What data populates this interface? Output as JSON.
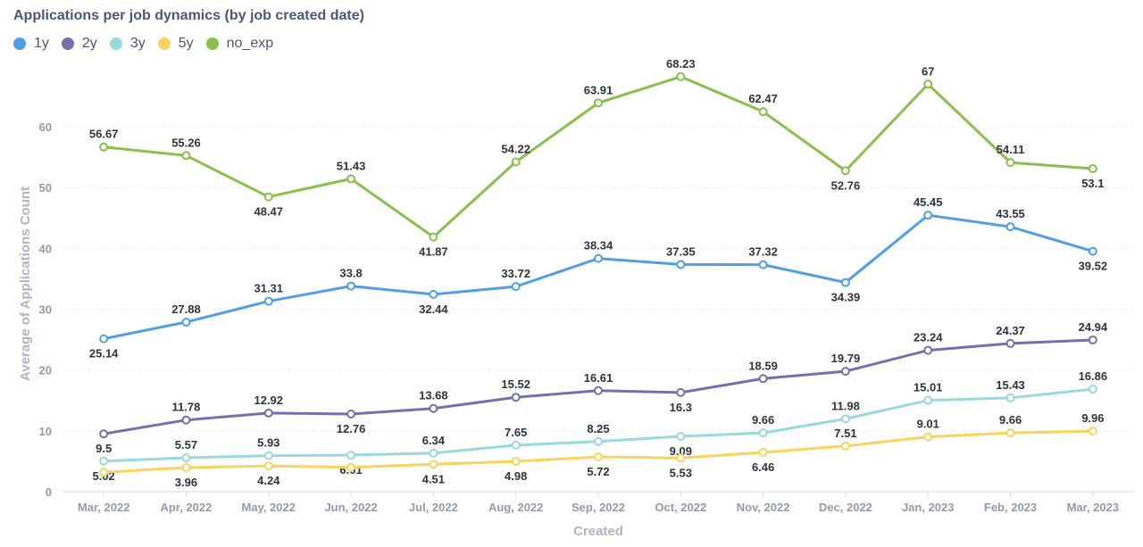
{
  "chart_data": {
    "type": "line",
    "title": "Applications per job dynamics (by job created date)",
    "xlabel": "Created",
    "ylabel": "Average of Applications Count",
    "ylim": [
      0,
      70
    ],
    "yticks": [
      0,
      10,
      20,
      30,
      40,
      50,
      60
    ],
    "grid": true,
    "legend_position": "top-left",
    "categories": [
      "Mar, 2022",
      "Apr, 2022",
      "May, 2022",
      "Jun, 2022",
      "Jul, 2022",
      "Aug, 2022",
      "Sep, 2022",
      "Oct, 2022",
      "Nov, 2022",
      "Dec, 2022",
      "Jan, 2023",
      "Feb, 2023",
      "Mar, 2023"
    ],
    "series": [
      {
        "name": "1y",
        "color": "#509ee3",
        "values": [
          25.14,
          27.88,
          31.31,
          33.8,
          32.44,
          33.72,
          38.34,
          37.35,
          37.32,
          34.39,
          45.45,
          43.55,
          39.52
        ],
        "label_pos": [
          "below",
          "above",
          "above",
          "above",
          "below",
          "above",
          "above",
          "above",
          "above",
          "below",
          "above",
          "above",
          "below"
        ]
      },
      {
        "name": "2y",
        "color": "#7172ad",
        "values": [
          9.5,
          11.78,
          12.92,
          12.76,
          13.68,
          15.52,
          16.61,
          16.3,
          18.59,
          19.79,
          23.24,
          24.37,
          24.94
        ],
        "label_pos": [
          "below",
          "above",
          "above",
          "below",
          "above",
          "above",
          "above",
          "below",
          "above",
          "above",
          "above",
          "above",
          "above"
        ]
      },
      {
        "name": "3y",
        "color": "#98d9d9",
        "values": [
          5.02,
          5.57,
          5.93,
          6.01,
          6.34,
          7.65,
          8.25,
          9.09,
          9.66,
          11.98,
          15.01,
          15.43,
          16.86
        ],
        "label_pos": [
          "below",
          "above",
          "above",
          "below",
          "above",
          "above",
          "above",
          "below",
          "above",
          "above",
          "above",
          "above",
          "above"
        ]
      },
      {
        "name": "5y",
        "color": "#f9d45c",
        "values": [
          3.2,
          3.96,
          4.24,
          4.0,
          4.51,
          4.98,
          5.72,
          5.53,
          6.46,
          7.51,
          9.01,
          9.66,
          9.96
        ],
        "labels": [
          "",
          "3.96",
          "4.24",
          "",
          "4.51",
          "4.98",
          "5.72",
          "5.53",
          "6.46",
          "7.51",
          "9.01",
          "9.66",
          "9.96"
        ],
        "label_pos": [
          "below",
          "below",
          "below",
          "below",
          "below",
          "below",
          "below",
          "below",
          "below",
          "above",
          "above",
          "above",
          "above"
        ]
      },
      {
        "name": "no_exp",
        "color": "#88bf4d",
        "values": [
          56.67,
          55.26,
          48.47,
          51.43,
          41.87,
          54.22,
          63.91,
          68.23,
          62.47,
          52.76,
          67,
          54.11,
          53.1
        ],
        "label_pos": [
          "above",
          "above",
          "below",
          "above",
          "below",
          "above",
          "above",
          "above",
          "above",
          "below",
          "above",
          "above",
          "below"
        ]
      }
    ]
  }
}
